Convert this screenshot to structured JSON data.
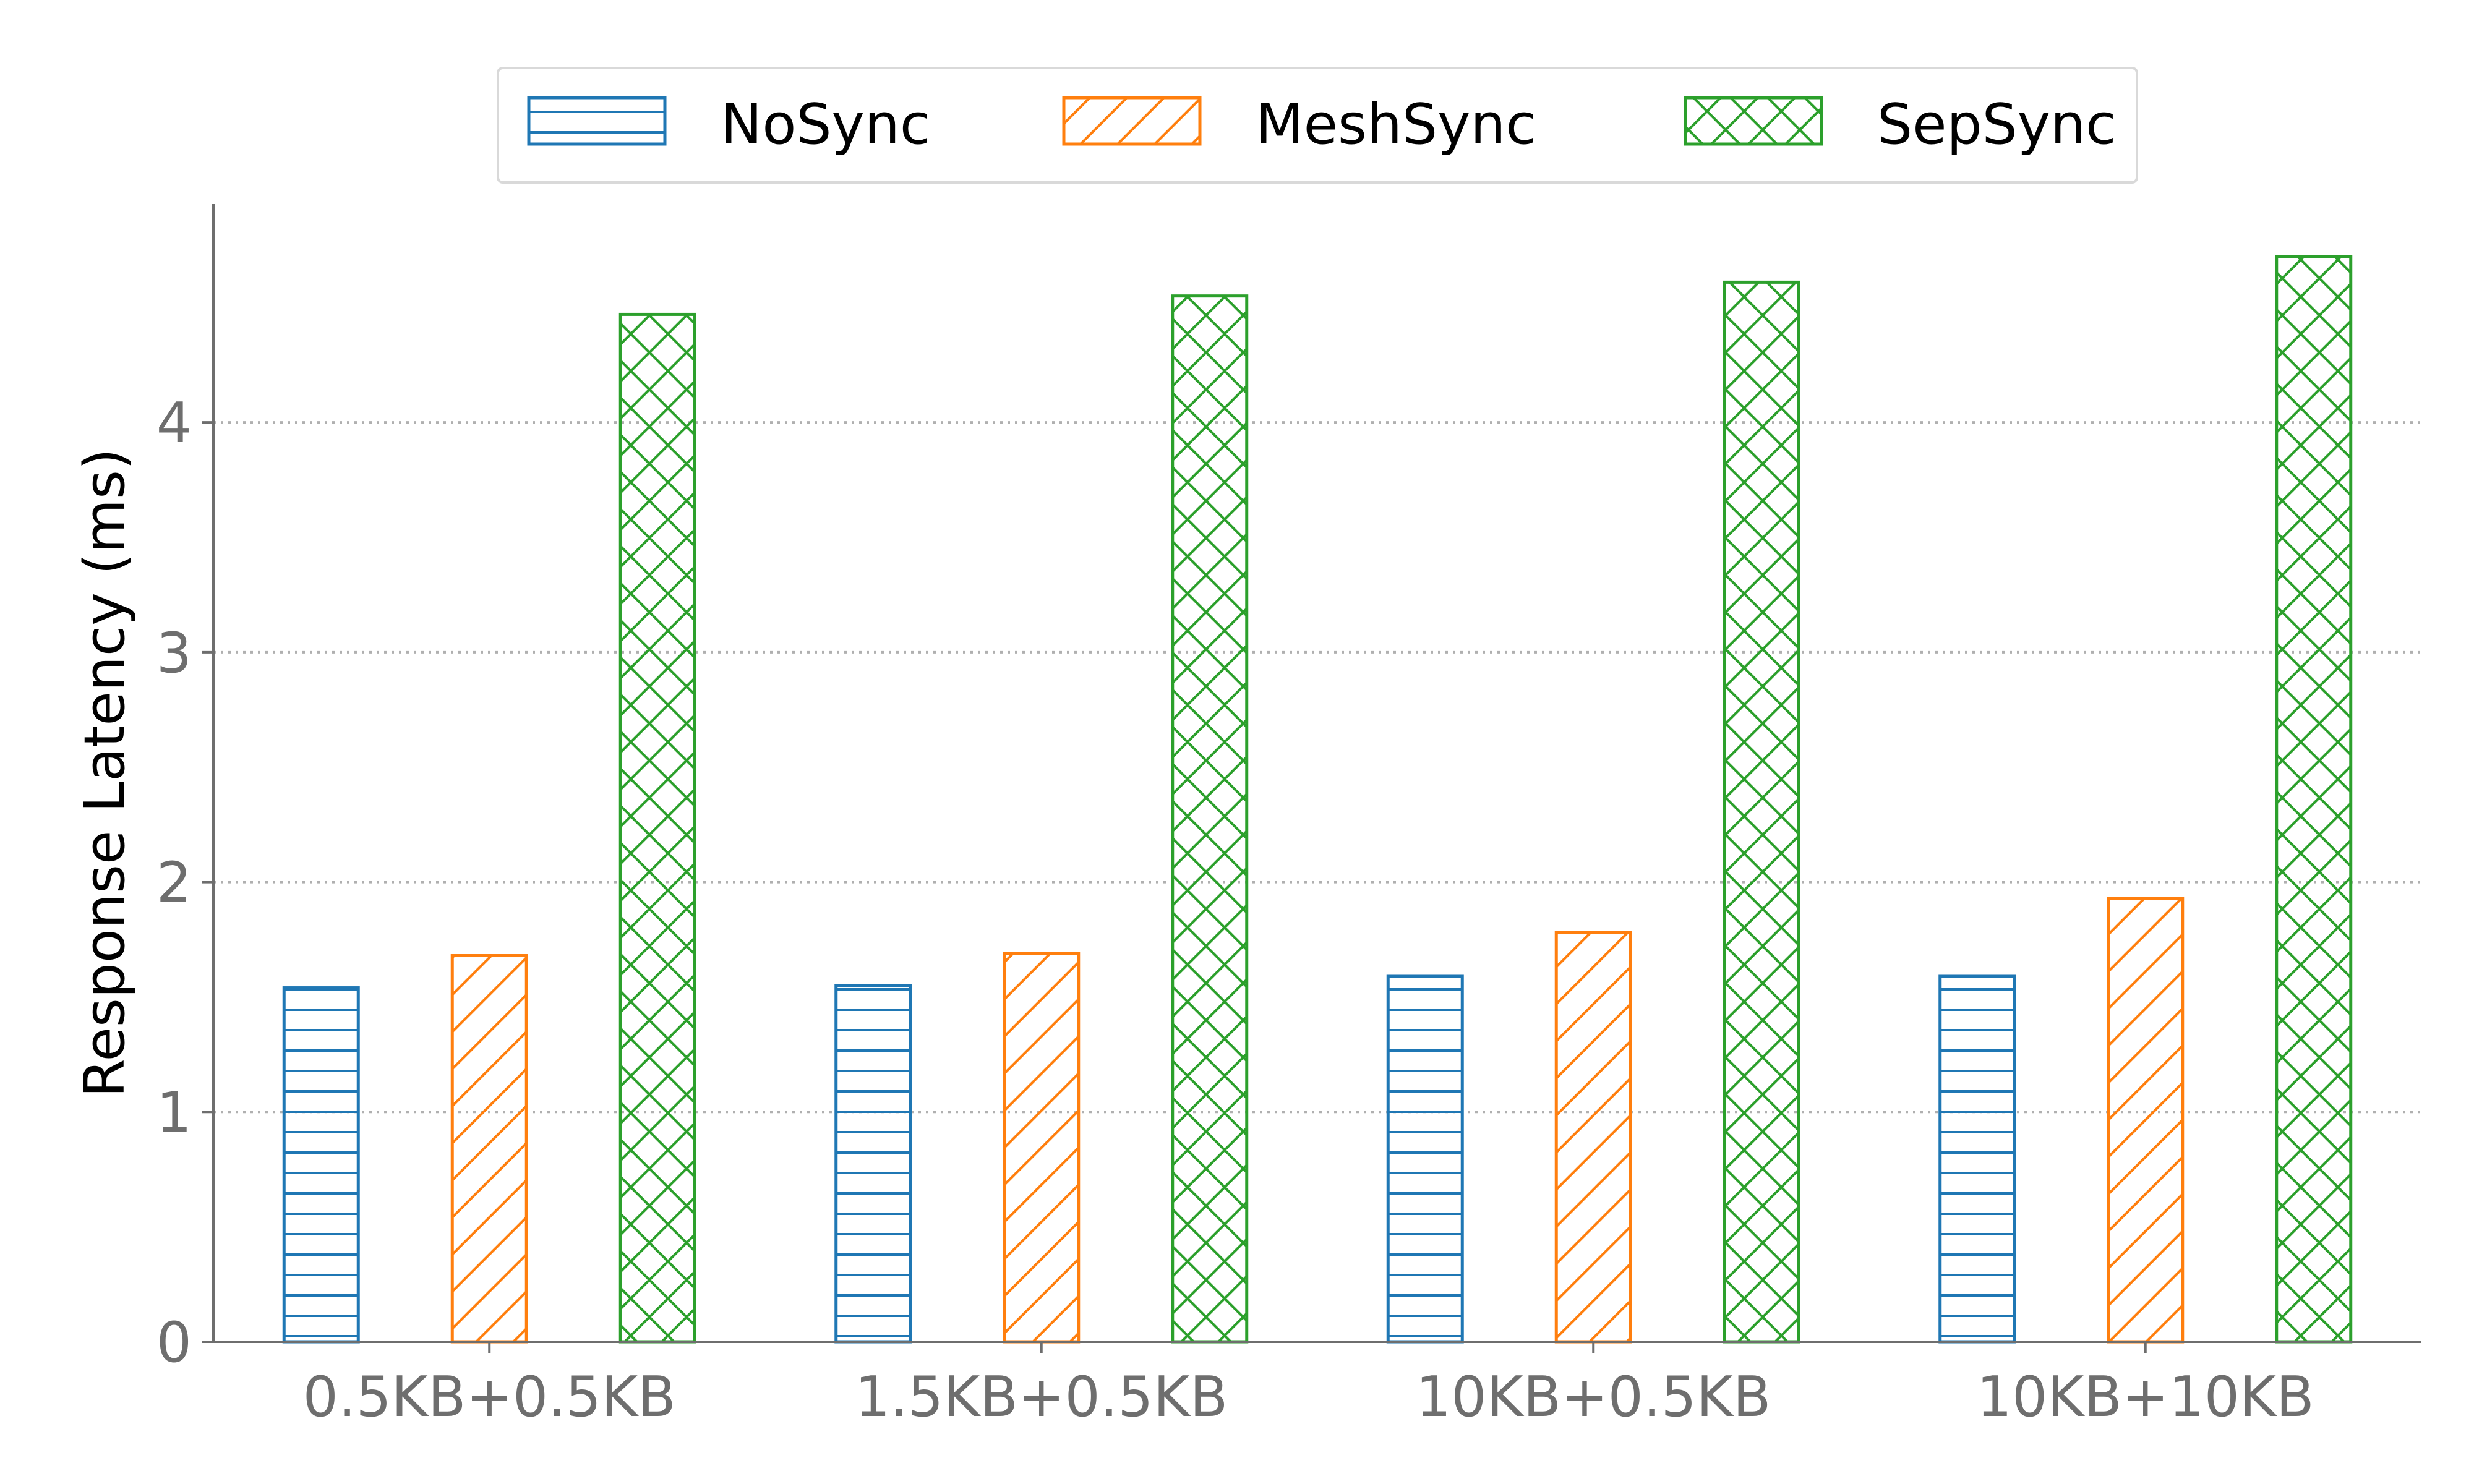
{
  "chart_data": {
    "type": "bar",
    "title": "",
    "xlabel": "",
    "ylabel": "Response Latency (ms)",
    "categories": [
      "0.5KB+0.5KB",
      "1.5KB+0.5KB",
      "10KB+0.5KB",
      "10KB+10KB"
    ],
    "series": [
      {
        "name": "NoSync",
        "values": [
          1.54,
          1.55,
          1.59,
          1.59
        ],
        "color": "#1f77b4",
        "hatch": "horizontal"
      },
      {
        "name": "MeshSync",
        "values": [
          1.68,
          1.69,
          1.78,
          1.93
        ],
        "color": "#ff7f0e",
        "hatch": "diagonal"
      },
      {
        "name": "SepSync",
        "values": [
          4.47,
          4.55,
          4.61,
          4.72
        ],
        "color": "#2ca02c",
        "hatch": "crosshatch"
      }
    ],
    "ylim": [
      0,
      4.95
    ],
    "yticks": [
      0,
      1,
      2,
      3,
      4
    ],
    "grid": "horizontal-dotted",
    "legend_position": "top-center"
  }
}
